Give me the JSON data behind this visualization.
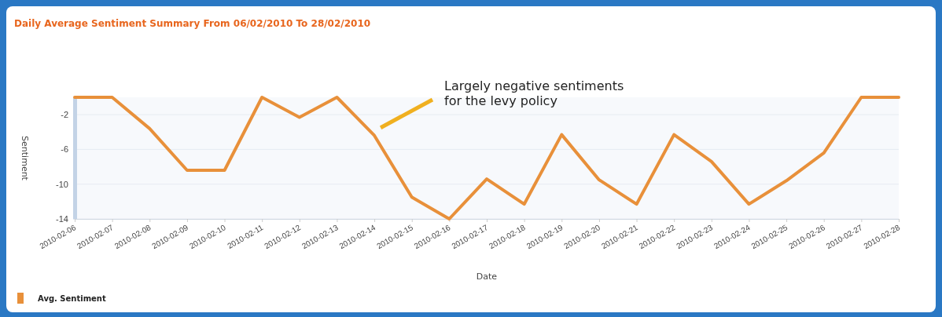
{
  "chart_data": {
    "type": "line",
    "title": "Daily Average Sentiment Summary  From 06/02/2010 To 28/02/2010",
    "xlabel": "Date",
    "ylabel": "Sentiment",
    "x": [
      "2010-02-06",
      "2010-02-07",
      "2010-02-08",
      "2010-02-09",
      "2010-02-10",
      "2010-02-11",
      "2010-02-12",
      "2010-02-13",
      "2010-02-14",
      "2010-02-15",
      "2010-02-16",
      "2010-02-17",
      "2010-02-18",
      "2010-02-19",
      "2010-02-20",
      "2010-02-21",
      "2010-02-22",
      "2010-02-23",
      "2010-02-24",
      "2010-02-25",
      "2010-02-26",
      "2010-02-27",
      "2010-02-28"
    ],
    "series": [
      {
        "name": "Avg. Sentiment",
        "color": "#e8903a",
        "values": [
          0,
          0,
          -3.6,
          -8.4,
          -8.4,
          0,
          -2.3,
          0,
          -4.4,
          -11.5,
          -14,
          -9.4,
          -12.3,
          -4.3,
          -9.5,
          -12.3,
          -4.3,
          -7.4,
          -12.3,
          -9.6,
          -6.4,
          0,
          0
        ]
      }
    ],
    "xlim": [
      "2010-02-06",
      "2010-02-28"
    ],
    "xticks": [
      "2010-02-06",
      "2010-02-07",
      "2010-02-08",
      "2010-02-09",
      "2010-02-10",
      "2010-02-11",
      "2010-02-12",
      "2010-02-13",
      "2010-02-14",
      "2010-02-15",
      "2010-02-16",
      "2010-02-17",
      "2010-02-18",
      "2010-02-19",
      "2010-02-20",
      "2010-02-21",
      "2010-02-22",
      "2010-02-23",
      "2010-02-24",
      "2010-02-25",
      "2010-02-26",
      "2010-02-27",
      "2010-02-28"
    ],
    "ylim": [
      -14,
      0
    ],
    "yticks": [
      -2,
      -6,
      -10,
      -14
    ],
    "grid": "y",
    "legend": "bottom left",
    "marker": "none",
    "line_style": "solid",
    "annotations": [
      "Largely negative sentiments\nfor the levy policy"
    ]
  }
}
